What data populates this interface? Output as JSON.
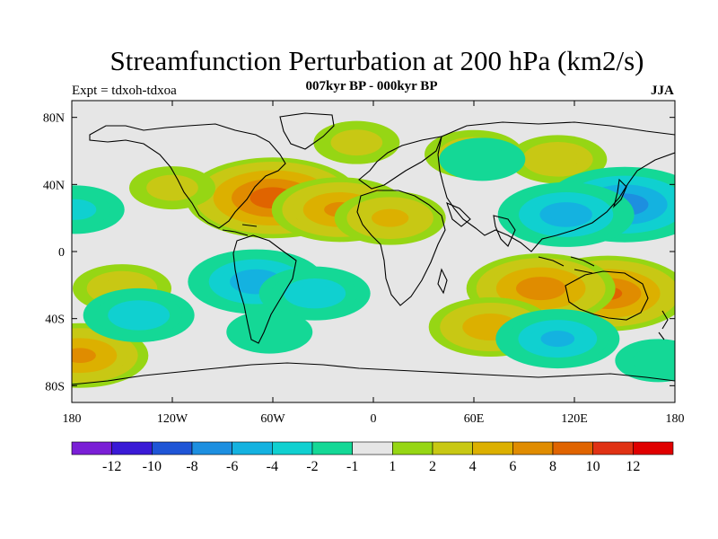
{
  "title": "Streamfunction Perturbation at 200 hPa (km2/s)",
  "subtitle": "007kyr BP - 000kyr BP",
  "left_label": "Expt = tdxoh-tdxoa",
  "right_label": "JJA",
  "map": {
    "projection": "cylindrical-equidistant",
    "lon_range": [
      -180,
      180
    ],
    "lat_range": [
      -90,
      90
    ],
    "x_ticks": [
      {
        "lon": -180,
        "label": "180"
      },
      {
        "lon": -120,
        "label": "120W"
      },
      {
        "lon": -60,
        "label": "60W"
      },
      {
        "lon": 0,
        "label": "0"
      },
      {
        "lon": 60,
        "label": "60E"
      },
      {
        "lon": 120,
        "label": "120E"
      },
      {
        "lon": 180,
        "label": "180"
      }
    ],
    "y_ticks": [
      {
        "lat": 80,
        "label": "80N"
      },
      {
        "lat": 40,
        "label": "40N"
      },
      {
        "lat": 0,
        "label": "0"
      },
      {
        "lat": -40,
        "label": "40S"
      },
      {
        "lat": -80,
        "label": "80S"
      }
    ]
  },
  "colorbar": {
    "colors": [
      "#7a1fd6",
      "#3a1ad6",
      "#1f55d6",
      "#1d8fe0",
      "#14b2e0",
      "#10d0d0",
      "#14d896",
      "#e6e6e6",
      "#96d614",
      "#c8c814",
      "#dcb000",
      "#e08c00",
      "#e06400",
      "#e03214",
      "#e00000"
    ],
    "labels": [
      "-12",
      "-10",
      "-8",
      "-6",
      "-4",
      "-2",
      "-1",
      "1",
      "2",
      "4",
      "6",
      "8",
      "10",
      "12"
    ]
  },
  "fields": {
    "background": "#e6e6e6",
    "anomalies": [
      {
        "lon": -60,
        "lat": 32,
        "value": 9
      },
      {
        "lon": -20,
        "lat": 25,
        "value": 6
      },
      {
        "lon": 10,
        "lat": 20,
        "value": 4
      },
      {
        "lon": -120,
        "lat": 38,
        "value": 2
      },
      {
        "lon": 140,
        "lat": -25,
        "value": 8
      },
      {
        "lon": 100,
        "lat": -22,
        "value": 7
      },
      {
        "lon": 70,
        "lat": -45,
        "value": 5
      },
      {
        "lon": -150,
        "lat": -22,
        "value": 3
      },
      {
        "lon": -175,
        "lat": -62,
        "value": 6
      },
      {
        "lon": 110,
        "lat": 55,
        "value": 3
      },
      {
        "lon": 60,
        "lat": 58,
        "value": 3
      },
      {
        "lon": -10,
        "lat": 65,
        "value": 2
      },
      {
        "lon": 150,
        "lat": 28,
        "value": -8
      },
      {
        "lon": 115,
        "lat": 22,
        "value": -6
      },
      {
        "lon": -70,
        "lat": -18,
        "value": -6
      },
      {
        "lon": -35,
        "lat": -25,
        "value": -4
      },
      {
        "lon": -140,
        "lat": -38,
        "value": -4
      },
      {
        "lon": 110,
        "lat": -52,
        "value": -5
      },
      {
        "lon": -178,
        "lat": 25,
        "value": -3
      },
      {
        "lon": -62,
        "lat": -48,
        "value": -2
      },
      {
        "lon": 65,
        "lat": 55,
        "value": -2
      },
      {
        "lon": 170,
        "lat": -65,
        "value": -2
      }
    ]
  }
}
